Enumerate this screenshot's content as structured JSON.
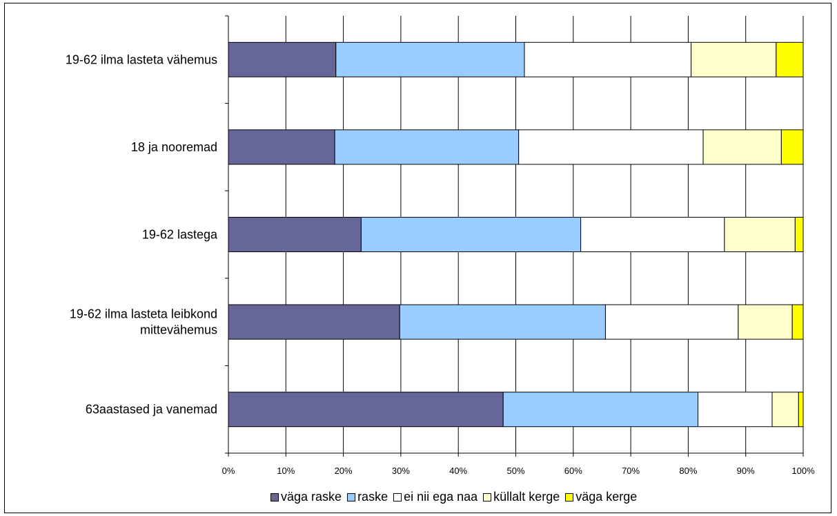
{
  "chart_data": {
    "type": "bar",
    "orientation": "horizontal",
    "stacked": "percent",
    "categories": [
      "19-62 ilma lasteta vähemus",
      "18 ja nooremad",
      "19-62 lastega",
      "19-62 ilma lasteta leibkond mittevähemus",
      "63aastased ja vanemad"
    ],
    "category_lines": [
      [
        "19-62 ilma lasteta vähemus"
      ],
      [
        "18 ja nooremad"
      ],
      [
        "19-62 lastega"
      ],
      [
        "19-62 ilma lasteta leibkond",
        "mittevähemus"
      ],
      [
        "63aastased ja vanemad"
      ]
    ],
    "series": [
      {
        "name": "väga raske",
        "color": "#666699",
        "values": [
          18.7,
          18.5,
          23.1,
          29.8,
          47.8
        ]
      },
      {
        "name": "raske",
        "color": "#99CCFF",
        "values": [
          32.8,
          32.0,
          38.2,
          35.8,
          33.9
        ]
      },
      {
        "name": "ei nii ega naa",
        "color": "#FFFFFF",
        "values": [
          29.0,
          32.1,
          25.0,
          23.1,
          12.9
        ]
      },
      {
        "name": "küllalt kerge",
        "color": "#FFFFCC",
        "values": [
          14.8,
          13.6,
          12.3,
          9.4,
          4.6
        ]
      },
      {
        "name": "väga kerge",
        "color": "#FFFF00",
        "values": [
          4.7,
          3.8,
          1.4,
          1.9,
          0.8
        ]
      }
    ],
    "x_ticks": [
      "0%",
      "10%",
      "20%",
      "30%",
      "40%",
      "50%",
      "60%",
      "70%",
      "80%",
      "90%",
      "100%"
    ],
    "xlim": [
      0,
      100
    ],
    "grid": true,
    "legend_position": "bottom",
    "title": "",
    "xlabel": "",
    "ylabel": ""
  }
}
